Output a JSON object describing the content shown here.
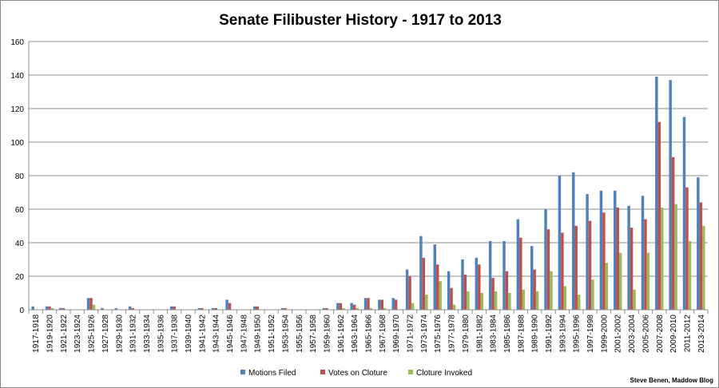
{
  "chart_data": {
    "type": "bar",
    "title": "Senate Filibuster History - 1917 to 2013",
    "xlabel": "",
    "ylabel": "",
    "ylim": [
      0,
      160
    ],
    "yticks": [
      0,
      20,
      40,
      60,
      80,
      100,
      120,
      140,
      160
    ],
    "grid": true,
    "legend_position": "bottom",
    "credit": "Steve Benen, Maddow Blog",
    "categories": [
      "1917-1918",
      "1919-1920",
      "1921-1922",
      "1923-1924",
      "1925-1926",
      "1927-1928",
      "1929-1930",
      "1931-1932",
      "1933-1934",
      "1935-1936",
      "1937-1938",
      "1939-1940",
      "1941-1942",
      "1943-1944",
      "1945-1946",
      "1947-1948",
      "1949-1950",
      "1951-1952",
      "1953-1954",
      "1955-1956",
      "1957-1958",
      "1959-1960",
      "1961-1962",
      "1963-1964",
      "1965-1966",
      "1967-1968",
      "1969-1970",
      "1971-1972",
      "1973-1974",
      "1975-1976",
      "1977-1978",
      "1979-1980",
      "1981-1982",
      "1983-1984",
      "1985-1986",
      "1987-1988",
      "1989-1990",
      "1991-1992",
      "1993-1994",
      "1995-1996",
      "1997-1998",
      "1999-2000",
      "2001-2002",
      "2003-2004",
      "2005-2006",
      "2007-2008",
      "2009-2010",
      "2011-2012",
      "2013-2014"
    ],
    "series": [
      {
        "name": "Motions Filed",
        "color": "#4f81bd",
        "values": [
          2,
          2,
          1,
          0,
          7,
          1,
          1,
          2,
          0,
          0,
          2,
          0,
          1,
          1,
          6,
          0,
          2,
          0,
          1,
          0,
          0,
          1,
          4,
          4,
          7,
          6,
          7,
          24,
          44,
          39,
          23,
          30,
          31,
          41,
          41,
          54,
          38,
          60,
          80,
          82,
          69,
          71,
          71,
          62,
          68,
          139,
          137,
          115,
          79
        ]
      },
      {
        "name": "Votes on Cloture",
        "color": "#c0504d",
        "values": [
          0,
          2,
          1,
          0,
          7,
          0,
          0,
          1,
          0,
          0,
          2,
          0,
          1,
          1,
          4,
          0,
          2,
          0,
          1,
          0,
          0,
          1,
          4,
          3,
          7,
          6,
          6,
          20,
          31,
          27,
          13,
          21,
          27,
          19,
          23,
          43,
          24,
          48,
          46,
          50,
          53,
          58,
          61,
          49,
          54,
          112,
          91,
          73,
          64
        ]
      },
      {
        "name": "Cloture Invoked",
        "color": "#9bbb59",
        "values": [
          0,
          1,
          0,
          0,
          3,
          0,
          0,
          0,
          0,
          0,
          0,
          0,
          0,
          0,
          0,
          0,
          0,
          0,
          0,
          0,
          0,
          0,
          1,
          1,
          1,
          1,
          0,
          4,
          9,
          17,
          3,
          11,
          10,
          11,
          10,
          12,
          11,
          23,
          14,
          9,
          18,
          28,
          34,
          12,
          34,
          61,
          63,
          41,
          50
        ]
      }
    ]
  }
}
